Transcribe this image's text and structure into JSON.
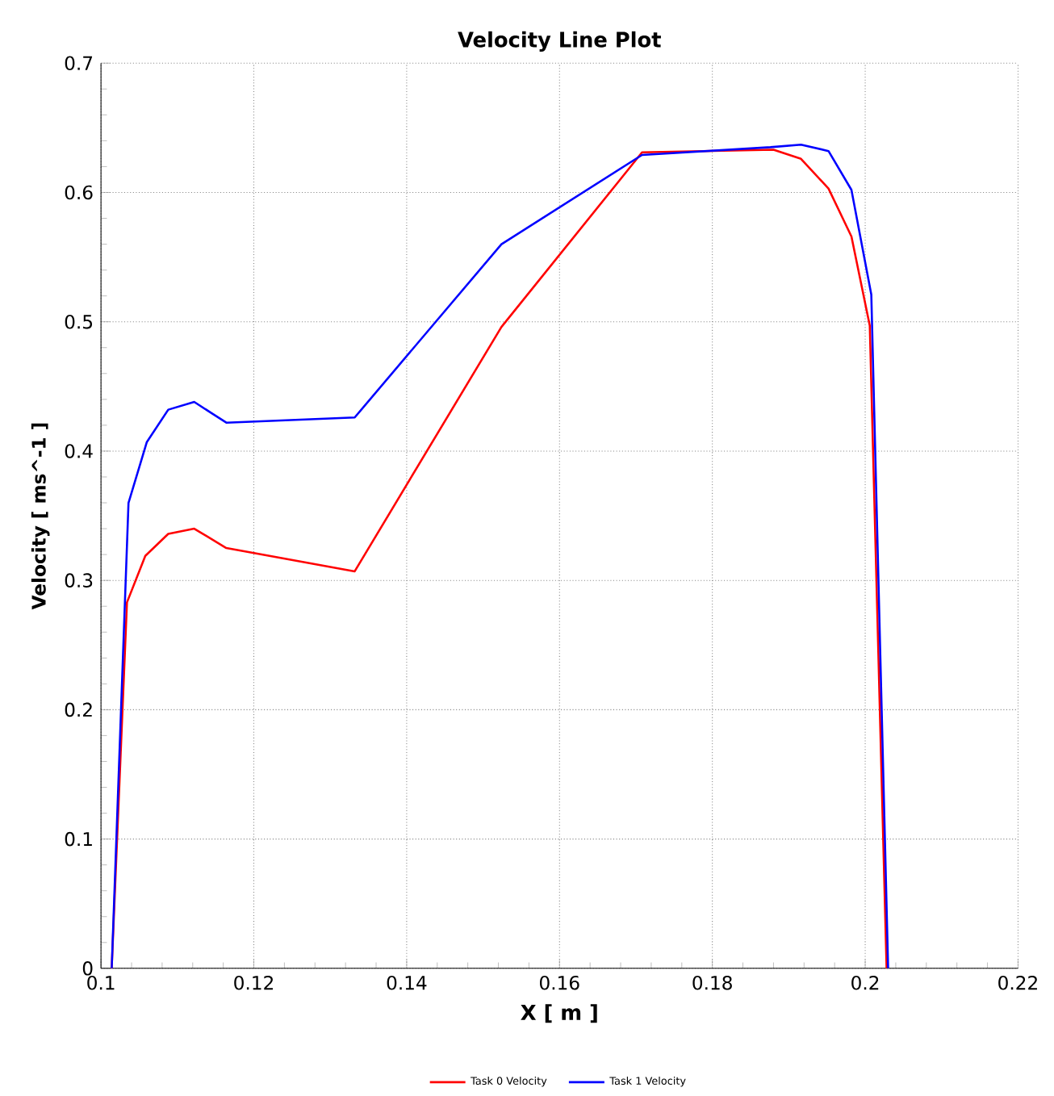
{
  "chart_data": {
    "type": "line",
    "title": "Velocity Line Plot",
    "xlabel": "X [ m ]",
    "ylabel": "Velocity [ ms^-1 ]",
    "xlim": [
      0.1,
      0.22
    ],
    "xticks": [
      0.1,
      0.12,
      0.14,
      0.16,
      0.18,
      0.2,
      0.22
    ],
    "ylim": [
      0,
      0.7
    ],
    "yticks": [
      0,
      0.1,
      0.2,
      0.3,
      0.4,
      0.5,
      0.6,
      0.7
    ],
    "grid": true,
    "legend": "bottom",
    "line_style": "solid",
    "series": [
      {
        "name": "Task 0 Velocity",
        "color": "#ff0000",
        "x": [
          0.1014,
          0.1034,
          0.1058,
          0.1088,
          0.1122,
          0.1164,
          0.1332,
          0.1524,
          0.1708,
          0.188,
          0.1916,
          0.1952,
          0.1982,
          0.2006,
          0.2028
        ],
        "values": [
          0,
          0.283,
          0.319,
          0.336,
          0.34,
          0.325,
          0.307,
          0.496,
          0.631,
          0.633,
          0.626,
          0.603,
          0.566,
          0.497,
          0
        ]
      },
      {
        "name": "Task 1 Velocity",
        "color": "#0000ff",
        "x": [
          0.1014,
          0.1036,
          0.106,
          0.1088,
          0.1122,
          0.1164,
          0.1332,
          0.1524,
          0.1708,
          0.1876,
          0.1916,
          0.1952,
          0.1982,
          0.2008,
          0.203
        ],
        "values": [
          0,
          0.36,
          0.407,
          0.432,
          0.438,
          0.422,
          0.426,
          0.56,
          0.629,
          0.635,
          0.637,
          0.632,
          0.602,
          0.521,
          0
        ]
      }
    ]
  }
}
